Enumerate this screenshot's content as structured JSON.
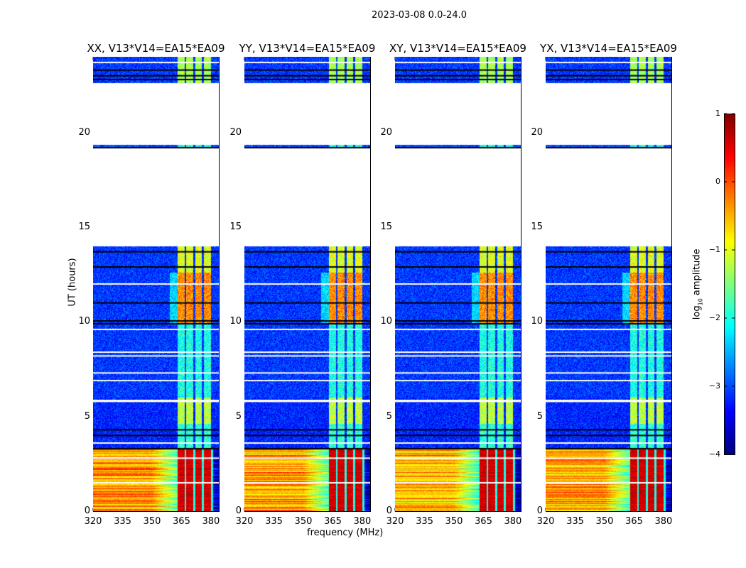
{
  "suptitle": "2023-03-08 0.0-24.0",
  "chart_data": {
    "type": "heatmap",
    "panels": [
      {
        "title": "XX, V13*V14=EA15*EA09",
        "red_strength": 1.0
      },
      {
        "title": "YY, V13*V14=EA15*EA09",
        "red_strength": 0.8
      },
      {
        "title": "XY, V13*V14=EA15*EA09",
        "red_strength": 0.6
      },
      {
        "title": "YX, V13*V14=EA15*EA09",
        "red_strength": 0.8
      }
    ],
    "xlabel": "frequency (MHz)",
    "ylabel": "UT (hours)",
    "xlim": [
      320,
      384
    ],
    "ylim": [
      0,
      24
    ],
    "xticks": [
      320,
      335,
      350,
      365,
      380
    ],
    "yticks": [
      0,
      5,
      10,
      15,
      20
    ],
    "colorbar": {
      "label_main": "log",
      "label_sub": "10",
      "label_rest": " amplitude",
      "range": [
        -4,
        1
      ],
      "ticks": [
        1,
        0,
        -1,
        -2,
        -3,
        -4
      ],
      "colormap": "jet"
    },
    "rfi_band_MHz": [
      [
        363,
        366.5
      ],
      [
        367.5,
        371
      ],
      [
        372,
        375.5
      ],
      [
        376.5,
        380
      ]
    ],
    "time_segments_hours": [
      {
        "t0": 0,
        "t1": 3.3,
        "background": -0.3,
        "band": 0.6
      },
      {
        "t0": 3.3,
        "t1": 4.6,
        "background": -3.2,
        "band": -1.9
      },
      {
        "t0": 4.6,
        "t1": 6.0,
        "background": -3.2,
        "band": -1.2
      },
      {
        "t0": 6.0,
        "t1": 9.9,
        "background": -3.1,
        "band": -2.0
      },
      {
        "t0": 9.9,
        "t1": 12.6,
        "background": -3.1,
        "band": -0.3
      },
      {
        "t0": 12.6,
        "t1": 14.0,
        "background": -3.1,
        "band": -1.0
      },
      {
        "t0": 14.0,
        "t1": 19.15,
        "background": null,
        "band": null
      },
      {
        "t0": 19.15,
        "t1": 19.35,
        "background": -3.0,
        "band": -2.0
      },
      {
        "t0": 19.35,
        "t1": 22.6,
        "background": null,
        "band": null
      },
      {
        "t0": 22.6,
        "t1": 24.0,
        "background": -3.1,
        "band": -1.3
      }
    ],
    "flagged_rows_black_hours": [
      3.3,
      4.0,
      4.3,
      9.9,
      10.05,
      11.0,
      12.9,
      13.7,
      19.2,
      22.8,
      23.0,
      23.3
    ],
    "flagged_rows_white_hours": [
      1.5,
      2.8,
      3.6,
      5.8,
      5.85,
      6.9,
      7.3,
      8.2,
      8.4,
      9.6,
      12.0,
      23.7
    ]
  }
}
